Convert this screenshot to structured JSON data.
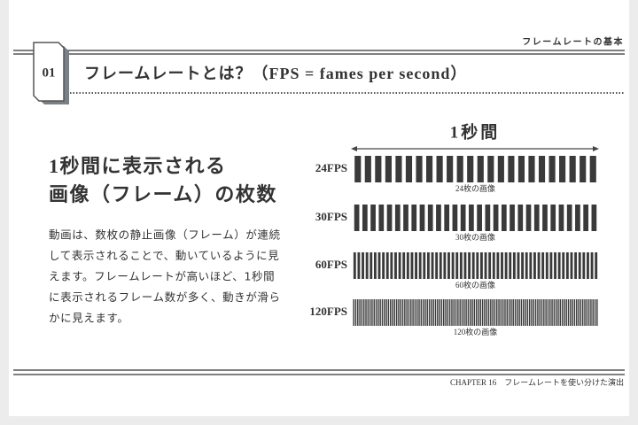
{
  "header": {
    "topic": "フレームレートの基本"
  },
  "section": {
    "number": "01",
    "title": "フレームレートとは？（FPS = fames per second）"
  },
  "heading": [
    "1秒間に表示される",
    "画像（フレーム）の枚数"
  ],
  "body": [
    "動画は、数枚の静止画像（フレーム）が連続",
    "して表示されることで、動いているように見",
    "えます。フレームレートが高いほど、1秒間",
    "に表示されるフレーム数が多く、動きが滑ら",
    "かに見えます。"
  ],
  "diagram": {
    "span_label": "1秒間",
    "rows": [
      {
        "label": "24FPS",
        "frames": 24,
        "caption": "24枚の画像"
      },
      {
        "label": "30FPS",
        "frames": 30,
        "caption": "30枚の画像"
      },
      {
        "label": "60FPS",
        "frames": 60,
        "caption": "60枚の画像"
      },
      {
        "label": "120FPS",
        "frames": 120,
        "caption": "120枚の画像"
      }
    ]
  },
  "footer": "CHAPTER 16　フレームレートを使い分けた演出"
}
